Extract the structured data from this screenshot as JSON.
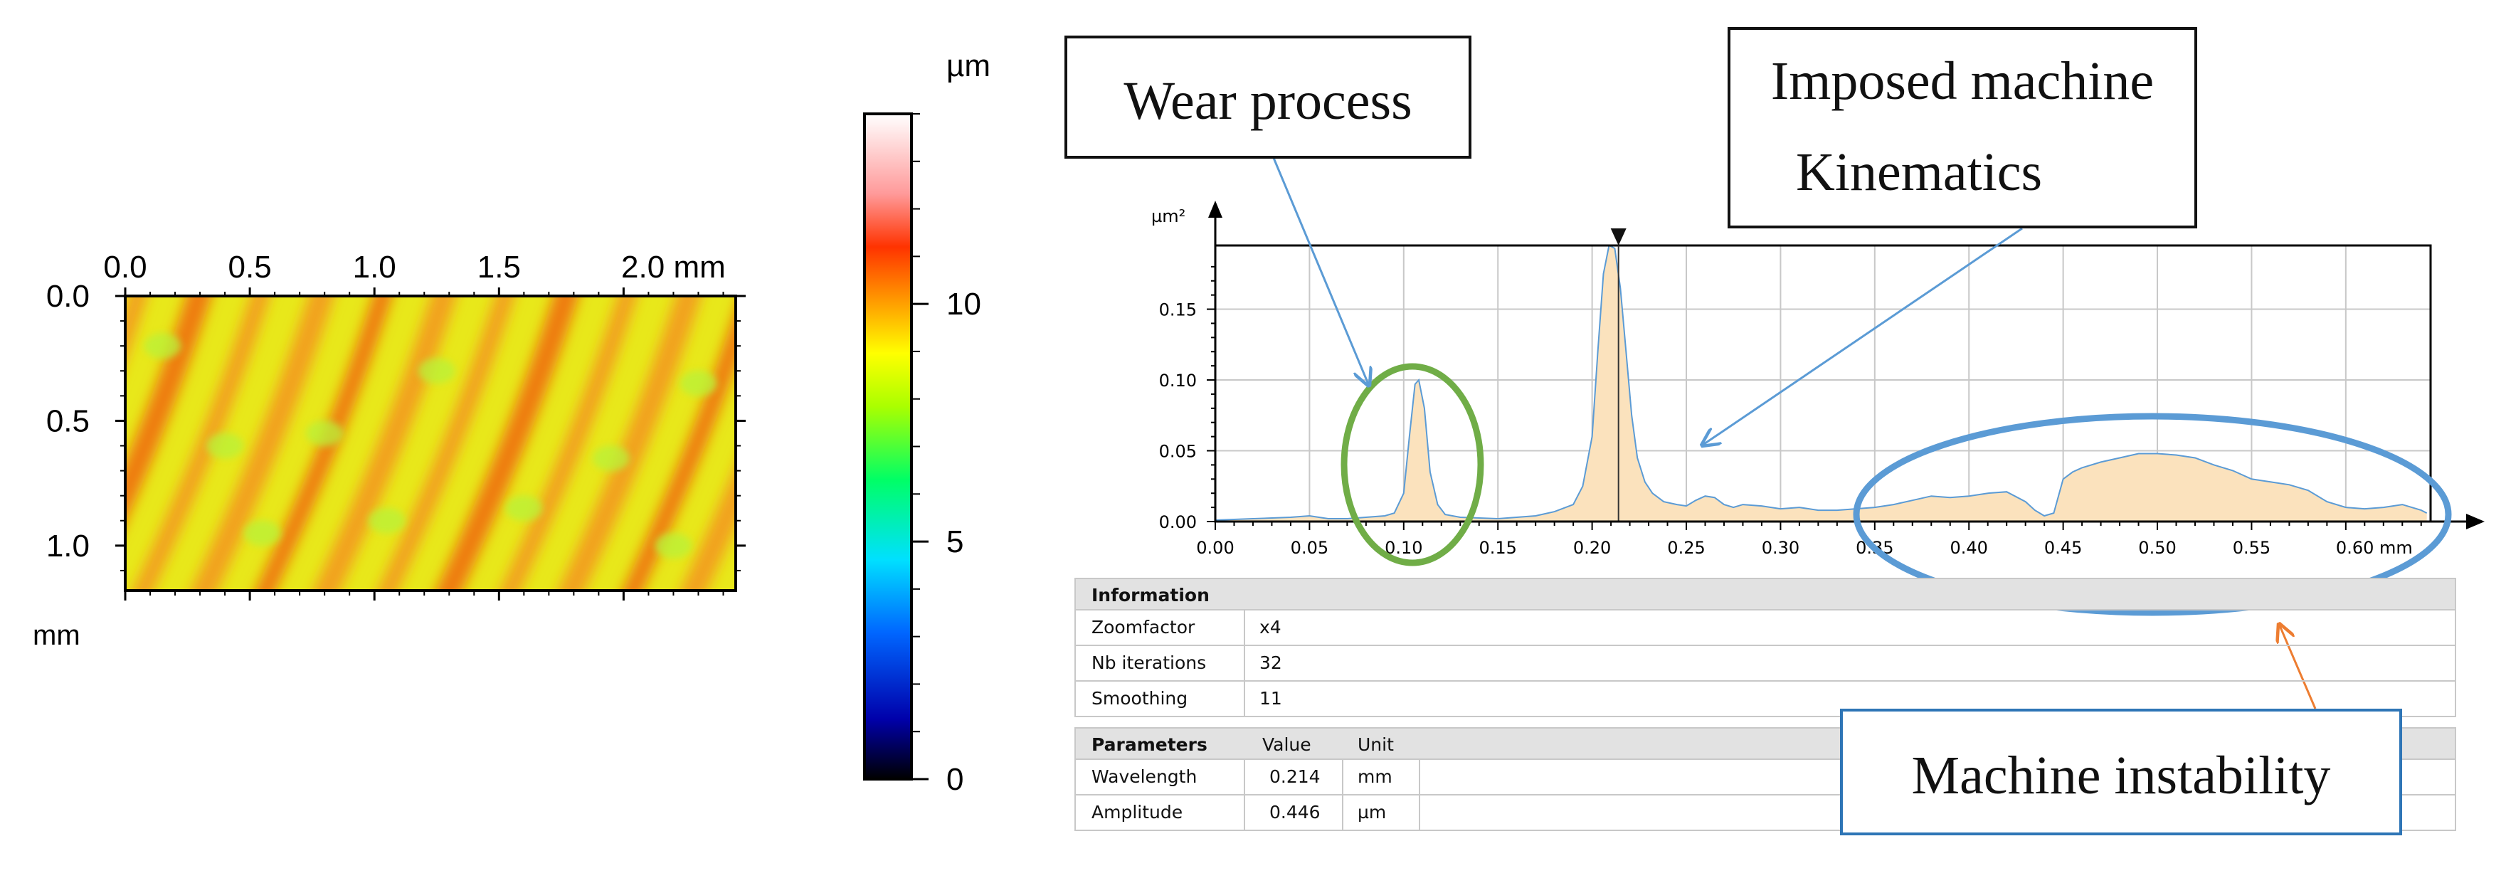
{
  "chart_data": [
    {
      "type": "heatmap",
      "title": "",
      "x_ticks": [
        "0.0",
        "0.5",
        "1.0",
        "1.5",
        "2.0 mm"
      ],
      "y_ticks": [
        "0.0",
        "0.5",
        "1.0"
      ],
      "y_unit": "mm",
      "xlim": [
        0,
        2.45
      ],
      "ylim": [
        0,
        1.18
      ],
      "colorbar": {
        "unit": "µm",
        "ticks": [
          "0",
          "5",
          "10"
        ],
        "range": [
          0,
          14
        ]
      }
    },
    {
      "type": "area",
      "ylabel": "µm²",
      "x_tick_labels": [
        "0.00",
        "0.05",
        "0.10",
        "0.15",
        "0.20",
        "0.25",
        "0.30",
        "0.35",
        "0.40",
        "0.45",
        "0.50",
        "0.55",
        "0.60 mm"
      ],
      "x_tick_values": [
        0,
        0.05,
        0.1,
        0.15,
        0.2,
        0.25,
        0.3,
        0.35,
        0.4,
        0.45,
        0.5,
        0.55,
        0.6
      ],
      "y_tick_labels": [
        "0.00",
        "0.05",
        "0.10",
        "0.15"
      ],
      "y_tick_values": [
        0,
        0.05,
        0.1,
        0.15
      ],
      "xlim": [
        0,
        0.645
      ],
      "ylim": [
        0,
        0.195
      ],
      "marker_x": 0.214,
      "x": [
        0,
        0.02,
        0.04,
        0.05,
        0.06,
        0.07,
        0.08,
        0.09,
        0.095,
        0.1,
        0.103,
        0.106,
        0.108,
        0.111,
        0.114,
        0.118,
        0.122,
        0.13,
        0.15,
        0.17,
        0.18,
        0.19,
        0.195,
        0.2,
        0.203,
        0.206,
        0.209,
        0.212,
        0.215,
        0.218,
        0.221,
        0.224,
        0.228,
        0.232,
        0.238,
        0.245,
        0.25,
        0.255,
        0.26,
        0.265,
        0.27,
        0.275,
        0.28,
        0.29,
        0.3,
        0.31,
        0.32,
        0.33,
        0.34,
        0.35,
        0.36,
        0.37,
        0.38,
        0.39,
        0.4,
        0.41,
        0.42,
        0.43,
        0.435,
        0.44,
        0.445,
        0.45,
        0.455,
        0.46,
        0.47,
        0.48,
        0.49,
        0.5,
        0.51,
        0.52,
        0.53,
        0.54,
        0.55,
        0.56,
        0.57,
        0.58,
        0.59,
        0.6,
        0.61,
        0.62,
        0.63,
        0.635,
        0.64,
        0.643
      ],
      "y": [
        0.001,
        0.002,
        0.003,
        0.004,
        0.002,
        0.002,
        0.003,
        0.004,
        0.006,
        0.02,
        0.06,
        0.097,
        0.1,
        0.08,
        0.035,
        0.012,
        0.005,
        0.003,
        0.002,
        0.004,
        0.007,
        0.012,
        0.025,
        0.06,
        0.12,
        0.175,
        0.195,
        0.193,
        0.165,
        0.12,
        0.075,
        0.045,
        0.028,
        0.02,
        0.014,
        0.012,
        0.011,
        0.015,
        0.018,
        0.017,
        0.012,
        0.01,
        0.012,
        0.011,
        0.009,
        0.01,
        0.008,
        0.008,
        0.009,
        0.01,
        0.012,
        0.015,
        0.018,
        0.017,
        0.018,
        0.02,
        0.021,
        0.014,
        0.008,
        0.004,
        0.006,
        0.03,
        0.035,
        0.038,
        0.042,
        0.045,
        0.048,
        0.048,
        0.047,
        0.045,
        0.04,
        0.036,
        0.03,
        0.028,
        0.026,
        0.022,
        0.014,
        0.01,
        0.009,
        0.01,
        0.012,
        0.01,
        0.008,
        0.006
      ]
    }
  ],
  "table": {
    "information": {
      "header": "Information",
      "rows": [
        {
          "label": "Zoomfactor",
          "value": "x4"
        },
        {
          "label": "Nb iterations",
          "value": "32"
        },
        {
          "label": "Smoothing",
          "value": "11"
        }
      ]
    },
    "parameters": {
      "header": "Parameters",
      "value_header": "Value",
      "unit_header": "Unit",
      "rows": [
        {
          "label": "Wavelength",
          "value": "0.214",
          "unit": "mm"
        },
        {
          "label": "Amplitude",
          "value": "0.446",
          "unit": "µm"
        }
      ]
    }
  },
  "annotations": {
    "wear": "Wear process",
    "imposed_line1": "Imposed machine",
    "imposed_line2": "Kinematics",
    "instability": "Machine instability"
  },
  "colors": {
    "area_fill": "#fbe2bd",
    "area_line": "#5b9bd5",
    "wear_ellipse": "#70ad47",
    "instability_ellipse": "#5b9bd5",
    "instability_arrow": "#ed7d31",
    "callout_border_blue": "#2e75b6"
  }
}
